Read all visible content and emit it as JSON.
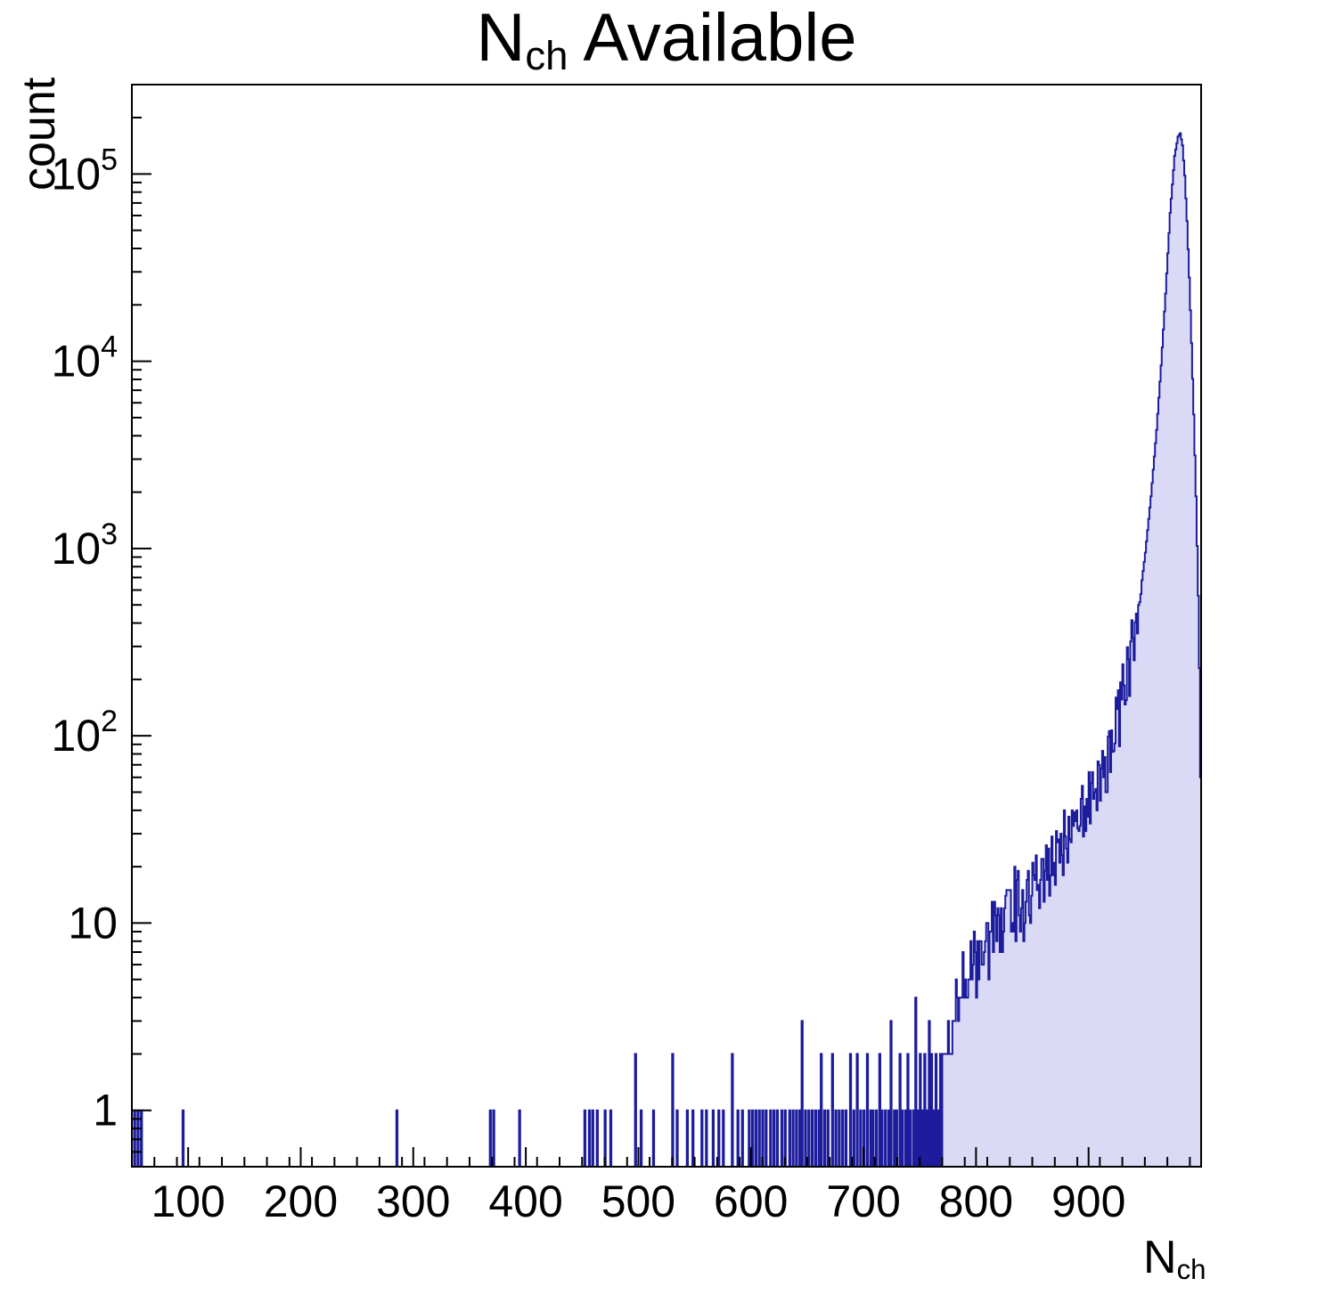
{
  "header": {
    "title_main": "N",
    "title_sub": "ch",
    "title_rest": " Available"
  },
  "axes": {
    "y_title": "count",
    "x_title_main": "N",
    "x_title_sub": "ch"
  },
  "chart_data": {
    "type": "bar",
    "subtype": "histogram-log-y",
    "title": "N_ch Available",
    "xlabel": "N_ch",
    "ylabel": "count",
    "xlim": [
      50,
      1000
    ],
    "ylim_log": [
      0.5,
      300000
    ],
    "bin_width": 1,
    "grid": false,
    "legend": "none",
    "x_major_ticks": [
      100,
      200,
      300,
      400,
      500,
      600,
      700,
      800,
      900
    ],
    "x_minor_step": 20,
    "y_ticks": [
      {
        "value": 1,
        "base": "1",
        "exp": ""
      },
      {
        "value": 10,
        "base": "10",
        "exp": ""
      },
      {
        "value": 100,
        "base": "10",
        "exp": "2"
      },
      {
        "value": 1000,
        "base": "10",
        "exp": "3"
      },
      {
        "value": 10000,
        "base": "10",
        "exp": "4"
      },
      {
        "value": 100000,
        "base": "10",
        "exp": "5"
      }
    ],
    "colors": {
      "fill": "#dadaf6",
      "stroke": "#1c1c9c",
      "axis": "#000000"
    },
    "peak": {
      "x": 981,
      "count": 165000
    },
    "sparse_bins": [
      [
        52,
        1
      ],
      [
        55,
        1
      ],
      [
        58,
        1
      ],
      [
        95,
        1
      ],
      [
        285,
        1
      ],
      [
        368,
        1
      ],
      [
        371,
        1
      ],
      [
        394,
        1
      ],
      [
        452,
        1
      ],
      [
        456,
        1
      ],
      [
        459,
        1
      ],
      [
        463,
        1
      ],
      [
        470,
        1
      ],
      [
        475,
        1
      ],
      [
        497,
        2
      ],
      [
        502,
        1
      ],
      [
        513,
        1
      ],
      [
        530,
        2
      ],
      [
        534,
        1
      ],
      [
        543,
        1
      ],
      [
        548,
        1
      ],
      [
        556,
        1
      ],
      [
        560,
        1
      ],
      [
        566,
        1
      ],
      [
        571,
        1
      ],
      [
        575,
        1
      ],
      [
        583,
        2
      ],
      [
        588,
        1
      ],
      [
        592,
        1
      ],
      [
        598,
        1
      ],
      [
        601,
        1
      ],
      [
        604,
        1
      ],
      [
        607,
        1
      ],
      [
        610,
        1
      ],
      [
        613,
        1
      ],
      [
        617,
        1
      ],
      [
        620,
        1
      ],
      [
        623,
        1
      ],
      [
        627,
        1
      ],
      [
        630,
        1
      ],
      [
        634,
        1
      ],
      [
        637,
        1
      ],
      [
        640,
        1
      ],
      [
        643,
        1
      ],
      [
        645,
        3
      ],
      [
        648,
        1
      ],
      [
        651,
        1
      ],
      [
        654,
        1
      ],
      [
        657,
        1
      ],
      [
        660,
        1
      ],
      [
        662,
        2
      ],
      [
        665,
        1
      ],
      [
        668,
        1
      ],
      [
        672,
        2
      ],
      [
        675,
        1
      ],
      [
        678,
        1
      ],
      [
        681,
        1
      ],
      [
        684,
        1
      ],
      [
        688,
        2
      ],
      [
        691,
        1
      ],
      [
        694,
        2
      ],
      [
        697,
        1
      ],
      [
        700,
        1
      ],
      [
        703,
        2
      ],
      [
        706,
        1
      ],
      [
        708,
        1
      ],
      [
        711,
        1
      ],
      [
        714,
        2
      ],
      [
        716,
        1
      ],
      [
        719,
        1
      ],
      [
        722,
        1
      ],
      [
        724,
        3
      ],
      [
        727,
        1
      ],
      [
        729,
        1
      ],
      [
        732,
        2
      ],
      [
        734,
        1
      ],
      [
        737,
        1
      ],
      [
        739,
        2
      ],
      [
        741,
        1
      ],
      [
        744,
        1
      ],
      [
        746,
        4
      ],
      [
        748,
        1
      ],
      [
        750,
        2
      ],
      [
        752,
        1
      ],
      [
        754,
        2
      ],
      [
        756,
        1
      ],
      [
        758,
        3
      ],
      [
        760,
        2
      ],
      [
        762,
        1
      ],
      [
        764,
        2
      ],
      [
        766,
        1
      ],
      [
        768,
        2
      ]
    ],
    "envelope_anchors": [
      [
        770,
        2
      ],
      [
        775,
        3
      ],
      [
        780,
        3
      ],
      [
        785,
        4
      ],
      [
        790,
        5
      ],
      [
        795,
        6
      ],
      [
        800,
        6
      ],
      [
        805,
        7
      ],
      [
        810,
        8
      ],
      [
        815,
        9
      ],
      [
        820,
        10
      ],
      [
        825,
        11
      ],
      [
        830,
        12
      ],
      [
        835,
        13
      ],
      [
        840,
        13
      ],
      [
        845,
        14
      ],
      [
        850,
        15
      ],
      [
        855,
        16
      ],
      [
        860,
        17
      ],
      [
        865,
        19
      ],
      [
        870,
        21
      ],
      [
        875,
        24
      ],
      [
        880,
        27
      ],
      [
        885,
        30
      ],
      [
        890,
        34
      ],
      [
        895,
        38
      ],
      [
        900,
        44
      ],
      [
        905,
        52
      ],
      [
        910,
        62
      ],
      [
        915,
        75
      ],
      [
        920,
        95
      ],
      [
        925,
        120
      ],
      [
        930,
        155
      ],
      [
        935,
        215
      ],
      [
        940,
        330
      ],
      [
        945,
        540
      ],
      [
        950,
        950
      ],
      [
        955,
        1900
      ],
      [
        960,
        4300
      ],
      [
        964,
        9500
      ],
      [
        968,
        23000
      ],
      [
        972,
        62000
      ],
      [
        976,
        125000
      ],
      [
        979,
        158000
      ],
      [
        981,
        165000
      ],
      [
        983,
        142000
      ],
      [
        985,
        98000
      ],
      [
        987,
        56000
      ],
      [
        989,
        28000
      ],
      [
        991,
        12500
      ],
      [
        993,
        5200
      ],
      [
        995,
        1900
      ],
      [
        997,
        560
      ],
      [
        998,
        230
      ],
      [
        999,
        60
      ],
      [
        1000,
        3
      ]
    ],
    "noise": {
      "from": 770,
      "to": 946,
      "log_jitter": 0.2,
      "seed": 1234567
    }
  }
}
